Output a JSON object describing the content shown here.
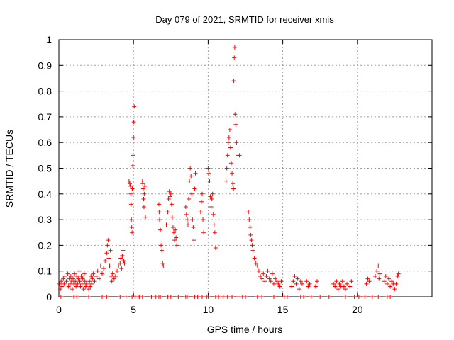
{
  "chart_data": {
    "type": "scatter",
    "title": "Day 079 of 2021, SRMTID for receiver xmis",
    "xlabel": "GPS time / hours",
    "ylabel": "SRMTID / TECUs",
    "xlim": [
      0,
      25
    ],
    "ylim": [
      0,
      1
    ],
    "xticks": [
      0,
      5,
      10,
      15,
      20
    ],
    "yticks": [
      0,
      0.1,
      0.2,
      0.3,
      0.4,
      0.5,
      0.6,
      0.7,
      0.8,
      0.9,
      1
    ],
    "ytick_labels": [
      "0",
      "0.1",
      "0.2",
      "0.3",
      "0.4",
      "0.5",
      "0.6",
      "0.7",
      "0.8",
      "0.9",
      "1"
    ],
    "grid": true,
    "marker": "+",
    "color": "#ff0000",
    "series": [
      {
        "name": "SRMTID",
        "x": [
          0.05,
          0.1,
          0.15,
          0.2,
          0.3,
          0.35,
          0.4,
          0.5,
          0.6,
          0.65,
          0.7,
          0.75,
          0.8,
          0.85,
          0.9,
          0.95,
          1.0,
          1.05,
          1.1,
          1.15,
          1.2,
          1.25,
          1.3,
          1.35,
          1.4,
          1.45,
          1.5,
          1.55,
          1.6,
          1.65,
          1.7,
          1.75,
          1.8,
          1.85,
          2.0,
          2.05,
          2.1,
          2.15,
          2.2,
          2.25,
          2.3,
          2.4,
          2.5,
          2.6,
          2.7,
          2.8,
          2.9,
          3.0,
          3.1,
          3.2,
          3.25,
          3.3,
          3.35,
          3.4,
          3.45,
          3.5,
          3.55,
          3.6,
          3.7,
          3.8,
          3.9,
          4.0,
          4.1,
          4.15,
          4.2,
          4.25,
          4.3,
          4.35,
          4.4,
          4.7,
          4.75,
          4.8,
          4.82,
          4.84,
          4.86,
          4.88,
          4.9,
          4.92,
          4.95,
          4.97,
          5.0,
          5.02,
          5.05,
          5.6,
          5.62,
          5.65,
          5.68,
          5.7,
          5.72,
          5.75,
          5.8,
          6.7,
          6.72,
          6.75,
          6.8,
          6.85,
          6.9,
          6.95,
          7.0,
          7.2,
          7.3,
          7.35,
          7.4,
          7.45,
          7.5,
          7.55,
          7.6,
          7.65,
          7.7,
          7.75,
          7.8,
          7.85,
          7.9,
          8.5,
          8.55,
          8.6,
          8.65,
          8.7,
          8.75,
          8.8,
          8.85,
          8.9,
          8.95,
          9.0,
          9.05,
          9.1,
          9.15,
          9.5,
          9.55,
          9.6,
          9.65,
          9.7,
          10.0,
          10.05,
          10.1,
          10.15,
          10.2,
          10.25,
          10.3,
          10.35,
          10.4,
          10.45,
          10.5,
          11.2,
          11.25,
          11.3,
          11.35,
          11.4,
          11.45,
          11.5,
          11.55,
          11.6,
          11.65,
          11.7,
          11.72,
          11.75,
          11.78,
          11.8,
          11.85,
          11.9,
          12.0,
          12.1,
          12.7,
          12.75,
          12.8,
          12.85,
          12.9,
          12.95,
          13.0,
          13.1,
          13.2,
          13.3,
          13.4,
          13.5,
          13.6,
          13.7,
          13.8,
          13.9,
          14.0,
          14.1,
          14.2,
          14.3,
          14.4,
          14.5,
          14.6,
          14.7,
          14.8,
          14.9,
          15.6,
          15.7,
          15.8,
          15.9,
          16.0,
          16.1,
          16.2,
          16.3,
          16.6,
          16.7,
          16.8,
          17.2,
          17.3,
          18.4,
          18.5,
          18.6,
          18.7,
          18.8,
          18.9,
          19.0,
          19.1,
          19.2,
          19.3,
          19.5,
          19.6,
          20.6,
          20.7,
          20.8,
          21.2,
          21.3,
          21.4,
          21.45,
          21.5,
          21.8,
          21.9,
          22.0,
          22.1,
          22.2,
          22.3,
          22.4,
          22.5,
          22.6,
          22.7,
          22.75,
          0.1,
          0.2,
          1.0,
          1.2,
          2.0,
          2.9,
          3.2,
          4.1,
          4.5,
          4.9,
          5.1,
          5.3,
          5.4,
          5.6,
          6.2,
          6.3,
          6.5,
          6.7,
          6.8,
          7.3,
          7.5,
          8.0,
          8.5,
          8.6,
          9.1,
          9.3,
          9.6,
          9.9,
          10.0,
          10.5,
          10.7,
          11.0,
          11.3,
          11.6,
          12.0,
          12.3,
          12.5,
          13.3,
          13.6,
          14.4,
          15.1,
          15.3,
          16.2,
          16.4,
          16.9,
          17.5,
          18.1,
          19.2,
          19.8,
          20.1,
          20.5,
          21.0,
          21.4,
          22.0,
          22.2
        ],
        "y": [
          0.05,
          0.03,
          0.06,
          0.04,
          0.07,
          0.05,
          0.08,
          0.06,
          0.09,
          0.04,
          0.07,
          0.05,
          0.08,
          0.06,
          0.03,
          0.07,
          0.05,
          0.09,
          0.06,
          0.04,
          0.08,
          0.05,
          0.07,
          0.1,
          0.06,
          0.04,
          0.08,
          0.05,
          0.07,
          0.03,
          0.09,
          0.06,
          0.04,
          0.05,
          0.03,
          0.06,
          0.04,
          0.08,
          0.05,
          0.07,
          0.09,
          0.06,
          0.08,
          0.1,
          0.07,
          0.12,
          0.09,
          0.11,
          0.14,
          0.17,
          0.2,
          0.22,
          0.15,
          0.12,
          0.18,
          0.08,
          0.06,
          0.09,
          0.07,
          0.08,
          0.1,
          0.12,
          0.13,
          0.15,
          0.11,
          0.16,
          0.18,
          0.14,
          0.13,
          0.45,
          0.44,
          0.43,
          0.4,
          0.36,
          0.3,
          0.27,
          0.25,
          0.42,
          0.51,
          0.55,
          0.62,
          0.68,
          0.74,
          0.45,
          0.44,
          0.42,
          0.38,
          0.35,
          0.4,
          0.43,
          0.31,
          0.36,
          0.33,
          0.3,
          0.26,
          0.2,
          0.18,
          0.13,
          0.12,
          0.28,
          0.33,
          0.38,
          0.41,
          0.39,
          0.4,
          0.36,
          0.31,
          0.27,
          0.25,
          0.22,
          0.26,
          0.23,
          0.2,
          0.35,
          0.32,
          0.3,
          0.28,
          0.38,
          0.45,
          0.5,
          0.47,
          0.4,
          0.3,
          0.27,
          0.22,
          0.42,
          0.48,
          0.33,
          0.37,
          0.4,
          0.3,
          0.25,
          0.5,
          0.48,
          0.45,
          0.39,
          0.35,
          0.38,
          0.4,
          0.32,
          0.28,
          0.25,
          0.19,
          0.45,
          0.5,
          0.55,
          0.6,
          0.62,
          0.65,
          0.58,
          0.52,
          0.48,
          0.44,
          0.42,
          0.84,
          0.93,
          0.97,
          0.71,
          0.67,
          0.6,
          0.55,
          0.55,
          0.33,
          0.3,
          0.27,
          0.24,
          0.22,
          0.2,
          0.18,
          0.15,
          0.13,
          0.12,
          0.1,
          0.08,
          0.07,
          0.09,
          0.06,
          0.08,
          0.1,
          0.07,
          0.06,
          0.09,
          0.05,
          0.07,
          0.06,
          0.05,
          0.04,
          0.06,
          0.04,
          0.06,
          0.08,
          0.05,
          0.07,
          0.03,
          0.06,
          0.05,
          0.06,
          0.04,
          0.05,
          0.04,
          0.06,
          0.05,
          0.04,
          0.06,
          0.03,
          0.05,
          0.04,
          0.06,
          0.04,
          0.03,
          0.05,
          0.04,
          0.06,
          0.05,
          0.07,
          0.06,
          0.08,
          0.1,
          0.12,
          0.07,
          0.09,
          0.06,
          0.08,
          0.05,
          0.07,
          0.04,
          0.06,
          0.05,
          0.03,
          0.05,
          0.08,
          0.09,
          0,
          0,
          0,
          0,
          0,
          0,
          0,
          0,
          0,
          0,
          0,
          0,
          0,
          0,
          0,
          0,
          0,
          0,
          0,
          0,
          0,
          0,
          0,
          0,
          0,
          0,
          0,
          0,
          0,
          0,
          0,
          0,
          0,
          0,
          0,
          0,
          0,
          0,
          0,
          0,
          0,
          0,
          0,
          0,
          0,
          0,
          0,
          0,
          0,
          0,
          0,
          0,
          0,
          0,
          0
        ]
      }
    ]
  }
}
